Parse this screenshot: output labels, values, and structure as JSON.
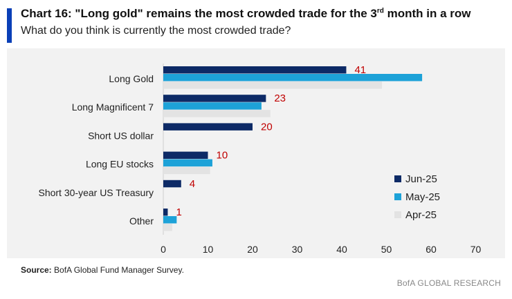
{
  "header": {
    "title_main": "Chart 16: \"Long gold\" remains the most crowded trade for the 3",
    "title_sup": "rd",
    "title_tail": " month in a row",
    "subtitle": "What do you think is currently the most crowded trade?"
  },
  "footer": {
    "source_label": "Source:",
    "source_text": " BofA Global Fund Manager Survey.",
    "brand": "BofA GLOBAL RESEARCH"
  },
  "colors": {
    "accent": "#0a3fb7",
    "Jun-25": "#0d2a66",
    "May-25": "#1da2d8",
    "Apr-25": "#e3e3e3",
    "data_label": "#c00000"
  },
  "chart_data": {
    "type": "bar",
    "orientation": "horizontal",
    "categories": [
      "Long Gold",
      "Long Magnificent 7",
      "Short US dollar",
      "Long EU stocks",
      "Short 30-year US Treasury",
      "Other"
    ],
    "series": [
      {
        "name": "Jun-25",
        "values": [
          41,
          23,
          20,
          10,
          4,
          1
        ]
      },
      {
        "name": "May-25",
        "values": [
          58,
          22,
          null,
          11,
          null,
          3
        ]
      },
      {
        "name": "Apr-25",
        "values": [
          49,
          24,
          null,
          10.5,
          null,
          2
        ]
      }
    ],
    "data_labels": [
      "41",
      "23",
      "20",
      "10",
      "4",
      "1"
    ],
    "xlim": [
      0,
      70
    ],
    "xticks": [
      0,
      10,
      20,
      30,
      40,
      50,
      60,
      70
    ],
    "legend_position": "right",
    "grid": false
  }
}
